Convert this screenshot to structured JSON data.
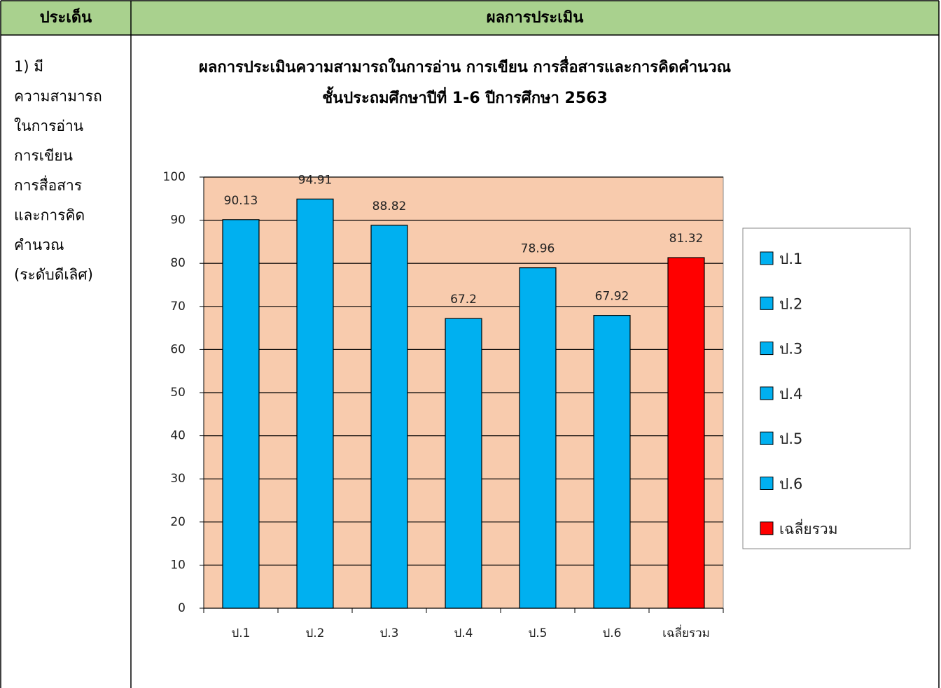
{
  "table": {
    "headers": [
      "ประเด็น",
      "ผลการประเมิน"
    ],
    "cell_lines": [
      "1) มี",
      "ความสามารถ",
      "ในการอ่าน",
      "การเขียน",
      "การสื่อสาร",
      "และการคิด",
      "คำนวณ",
      "(ระดับดีเลิศ)"
    ]
  },
  "chart_data": {
    "type": "bar",
    "title": [
      "ผลการประเมินความสามารถในการอ่าน การเขียน การสื่อสารและการคิดคำนวณ",
      "ชั้นประถมศึกษาปีที่ 1-6 ปีการศึกษา 2563"
    ],
    "categories": [
      "ป.1",
      "ป.2",
      "ป.3",
      "ป.4",
      "ป.5",
      "ป.6",
      "เฉลี่ยรวม"
    ],
    "values": [
      90.13,
      94.91,
      88.82,
      67.2,
      78.96,
      67.92,
      81.32
    ],
    "colors": [
      "#00b0f0",
      "#00b0f0",
      "#00b0f0",
      "#00b0f0",
      "#00b0f0",
      "#00b0f0",
      "#ff0000"
    ],
    "ylim": [
      0,
      100
    ],
    "yticks": [
      0,
      10,
      20,
      30,
      40,
      50,
      60,
      70,
      80,
      90,
      100
    ],
    "grid": true,
    "legend": "right",
    "plot_background": "#f8cbad"
  }
}
